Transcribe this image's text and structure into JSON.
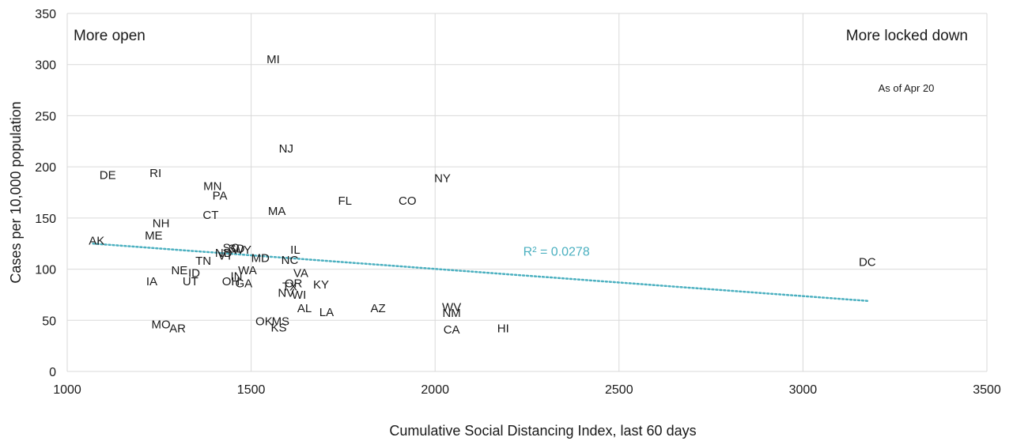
{
  "chart_data": {
    "type": "scatter",
    "title": "",
    "xlabel": "Cumulative Social Distancing Index, last 60 days",
    "ylabel": "Cases per 10,000 population",
    "xlim": [
      1000,
      3500
    ],
    "ylim": [
      0,
      350
    ],
    "x_ticks": [
      1000,
      1500,
      2000,
      2500,
      3000,
      3500
    ],
    "y_ticks": [
      0,
      50,
      100,
      150,
      200,
      250,
      300,
      350
    ],
    "grid": true,
    "annotations": {
      "left": "More open",
      "right": "More locked down",
      "asof": "As of Apr 20",
      "r2": "R² = 0.0278"
    },
    "trendline": {
      "type": "linear",
      "x": [
        1070,
        3175
      ],
      "y": [
        125,
        69
      ],
      "color": "#4bb0c0"
    },
    "points": [
      {
        "label": "MI",
        "x": 1560,
        "y": 305
      },
      {
        "label": "NJ",
        "x": 1595,
        "y": 218
      },
      {
        "label": "NY",
        "x": 2020,
        "y": 189
      },
      {
        "label": "DE",
        "x": 1110,
        "y": 192
      },
      {
        "label": "RI",
        "x": 1240,
        "y": 194
      },
      {
        "label": "MN",
        "x": 1395,
        "y": 181
      },
      {
        "label": "PA",
        "x": 1415,
        "y": 172
      },
      {
        "label": "FL",
        "x": 1755,
        "y": 167
      },
      {
        "label": "CO",
        "x": 1925,
        "y": 167
      },
      {
        "label": "MA",
        "x": 1570,
        "y": 157
      },
      {
        "label": "CT",
        "x": 1390,
        "y": 153
      },
      {
        "label": "NH",
        "x": 1255,
        "y": 145
      },
      {
        "label": "ME",
        "x": 1235,
        "y": 133
      },
      {
        "label": "AK",
        "x": 1080,
        "y": 128
      },
      {
        "label": "SD",
        "x": 1460,
        "y": 120
      },
      {
        "label": "WY",
        "x": 1475,
        "y": 119
      },
      {
        "label": "SC",
        "x": 1445,
        "y": 121
      },
      {
        "label": "ND",
        "x": 1425,
        "y": 116
      },
      {
        "label": "VT",
        "x": 1430,
        "y": 113
      },
      {
        "label": "IL",
        "x": 1620,
        "y": 119
      },
      {
        "label": "MD",
        "x": 1525,
        "y": 111
      },
      {
        "label": "NC",
        "x": 1605,
        "y": 109
      },
      {
        "label": "TN",
        "x": 1370,
        "y": 108
      },
      {
        "label": "NE",
        "x": 1305,
        "y": 99
      },
      {
        "label": "ID",
        "x": 1345,
        "y": 96
      },
      {
        "label": "WA",
        "x": 1490,
        "y": 99
      },
      {
        "label": "VA",
        "x": 1635,
        "y": 96
      },
      {
        "label": "IN",
        "x": 1460,
        "y": 93
      },
      {
        "label": "IA",
        "x": 1230,
        "y": 88
      },
      {
        "label": "UT",
        "x": 1335,
        "y": 88
      },
      {
        "label": "OH",
        "x": 1445,
        "y": 88
      },
      {
        "label": "GA",
        "x": 1480,
        "y": 86
      },
      {
        "label": "KY",
        "x": 1690,
        "y": 85
      },
      {
        "label": "OR",
        "x": 1615,
        "y": 86
      },
      {
        "label": "TX",
        "x": 1605,
        "y": 83
      },
      {
        "label": "NV",
        "x": 1595,
        "y": 77
      },
      {
        "label": "WI",
        "x": 1630,
        "y": 75
      },
      {
        "label": "AL",
        "x": 1645,
        "y": 62
      },
      {
        "label": "LA",
        "x": 1705,
        "y": 58
      },
      {
        "label": "AZ",
        "x": 1845,
        "y": 62
      },
      {
        "label": "WV",
        "x": 2045,
        "y": 63
      },
      {
        "label": "NM",
        "x": 2045,
        "y": 57
      },
      {
        "label": "OK",
        "x": 1535,
        "y": 49
      },
      {
        "label": "MS",
        "x": 1580,
        "y": 49
      },
      {
        "label": "KS",
        "x": 1575,
        "y": 43
      },
      {
        "label": "MO",
        "x": 1255,
        "y": 46
      },
      {
        "label": "AR",
        "x": 1300,
        "y": 42
      },
      {
        "label": "CA",
        "x": 2045,
        "y": 41
      },
      {
        "label": "HI",
        "x": 2185,
        "y": 42
      },
      {
        "label": "DC",
        "x": 3175,
        "y": 107
      }
    ]
  }
}
